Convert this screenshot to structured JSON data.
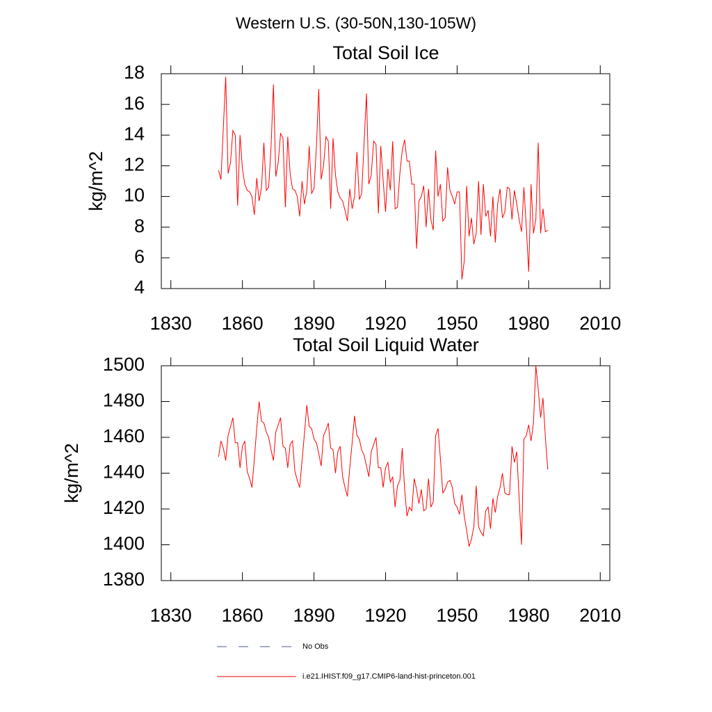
{
  "title": "Western U.S. (30-50N,130-105W)",
  "legend": [
    {
      "name": "No Obs",
      "color": "#4a5a8a",
      "dashed": true
    },
    {
      "name": "i.e21.IHIST.f09_g17.CMIP6-land-hist-princeton.001",
      "color": "#ff0000",
      "dashed": false
    }
  ],
  "chart_data": [
    {
      "type": "line",
      "title": "Total Soil Ice",
      "y_label": "kg/m^2",
      "xlim": [
        1826,
        2014
      ],
      "xticks": [
        1830,
        1860,
        1890,
        1920,
        1950,
        1980,
        2010
      ],
      "ylim": [
        4,
        18
      ],
      "yticks": [
        4,
        6,
        8,
        10,
        12,
        14,
        16,
        18
      ],
      "x": [
        1850,
        1851,
        1852,
        1853,
        1854,
        1855,
        1856,
        1857,
        1858,
        1859,
        1860,
        1861,
        1862,
        1863,
        1864,
        1865,
        1866,
        1867,
        1868,
        1869,
        1870,
        1871,
        1872,
        1873,
        1874,
        1875,
        1876,
        1877,
        1878,
        1879,
        1880,
        1881,
        1882,
        1883,
        1884,
        1885,
        1886,
        1887,
        1888,
        1889,
        1890,
        1891,
        1892,
        1893,
        1894,
        1895,
        1896,
        1897,
        1898,
        1899,
        1900,
        1901,
        1902,
        1903,
        1904,
        1905,
        1906,
        1907,
        1908,
        1909,
        1910,
        1911,
        1912,
        1913,
        1914,
        1915,
        1916,
        1917,
        1918,
        1919,
        1920,
        1921,
        1922,
        1923,
        1924,
        1925,
        1926,
        1927,
        1928,
        1929,
        1930,
        1931,
        1932,
        1933,
        1934,
        1935,
        1936,
        1937,
        1938,
        1939,
        1940,
        1941,
        1942,
        1943,
        1944,
        1945,
        1946,
        1947,
        1948,
        1949,
        1950,
        1951,
        1952,
        1953,
        1954,
        1955,
        1956,
        1957,
        1958,
        1959,
        1960,
        1961,
        1962,
        1963,
        1964,
        1965,
        1966,
        1967,
        1968,
        1969,
        1970,
        1971,
        1972,
        1973,
        1974,
        1975,
        1976,
        1977,
        1978,
        1979,
        1980,
        1981,
        1982,
        1983,
        1984,
        1985,
        1986,
        1987,
        1988
      ],
      "series": [
        {
          "name": "i.e21.IHIST.f09_g17.CMIP6-land-hist-princeton.001",
          "color": "#ff0000",
          "values": [
            11.7,
            11.1,
            14.5,
            17.8,
            11.5,
            12.2,
            14.3,
            14.0,
            9.4,
            14.0,
            11.8,
            10.8,
            10.4,
            10.3,
            10.0,
            8.8,
            11.2,
            9.7,
            10.6,
            13.5,
            10.4,
            10.6,
            13.2,
            17.3,
            11.3,
            12.2,
            14.1,
            13.8,
            9.3,
            13.9,
            11.5,
            10.5,
            10.4,
            10.0,
            8.7,
            11.0,
            9.5,
            10.4,
            13.3,
            10.2,
            10.5,
            13.2,
            17.0,
            11.1,
            12.0,
            13.9,
            13.6,
            9.2,
            13.8,
            11.4,
            10.3,
            9.9,
            9.7,
            9.1,
            8.4,
            10.5,
            9.2,
            10.0,
            12.9,
            9.8,
            10.2,
            13.5,
            16.7,
            10.8,
            11.4,
            13.6,
            13.4,
            8.9,
            13.3,
            11.0,
            9.0,
            11.8,
            10.4,
            13.6,
            9.2,
            9.3,
            11.5,
            13.0,
            13.7,
            12.3,
            12.3,
            10.8,
            10.8,
            6.6,
            9.7,
            10.0,
            10.7,
            8.0,
            10.5,
            8.5,
            7.8,
            13.0,
            10.0,
            10.8,
            8.4,
            8.6,
            11.9,
            10.4,
            10.0,
            9.5,
            10.3,
            10.3,
            4.6,
            5.8,
            10.7,
            7.4,
            8.6,
            6.9,
            7.6,
            11.0,
            7.5,
            10.8,
            8.7,
            9.1,
            7.4,
            10.0,
            7.0,
            9.5,
            10.5,
            8.6,
            9.0,
            10.6,
            10.5,
            8.5,
            10.4,
            9.5,
            8.5,
            7.7,
            10.6,
            8.0,
            5.1,
            10.8,
            7.6,
            8.5,
            13.5,
            7.6,
            9.2,
            7.7,
            7.8
          ]
        }
      ]
    },
    {
      "type": "line",
      "title": "Total Soil Liquid Water",
      "y_label": "kg/m^2",
      "xlim": [
        1826,
        2014
      ],
      "xticks": [
        1830,
        1860,
        1890,
        1920,
        1950,
        1980,
        2010
      ],
      "ylim": [
        1380,
        1500
      ],
      "yticks": [
        1380,
        1400,
        1420,
        1440,
        1460,
        1480,
        1500
      ],
      "x": [
        1850,
        1851,
        1852,
        1853,
        1854,
        1855,
        1856,
        1857,
        1858,
        1859,
        1860,
        1861,
        1862,
        1863,
        1864,
        1865,
        1866,
        1867,
        1868,
        1869,
        1870,
        1871,
        1872,
        1873,
        1874,
        1875,
        1876,
        1877,
        1878,
        1879,
        1880,
        1881,
        1882,
        1883,
        1884,
        1885,
        1886,
        1887,
        1888,
        1889,
        1890,
        1891,
        1892,
        1893,
        1894,
        1895,
        1896,
        1897,
        1898,
        1899,
        1900,
        1901,
        1902,
        1903,
        1904,
        1905,
        1906,
        1907,
        1908,
        1909,
        1910,
        1911,
        1912,
        1913,
        1914,
        1915,
        1916,
        1917,
        1918,
        1919,
        1920,
        1921,
        1922,
        1923,
        1924,
        1925,
        1926,
        1927,
        1928,
        1929,
        1930,
        1931,
        1932,
        1933,
        1934,
        1935,
        1936,
        1937,
        1938,
        1939,
        1940,
        1941,
        1942,
        1943,
        1944,
        1945,
        1946,
        1947,
        1948,
        1949,
        1950,
        1951,
        1952,
        1953,
        1954,
        1955,
        1956,
        1957,
        1958,
        1959,
        1960,
        1961,
        1962,
        1963,
        1964,
        1965,
        1966,
        1967,
        1968,
        1969,
        1970,
        1971,
        1972,
        1973,
        1974,
        1975,
        1976,
        1977,
        1978,
        1979,
        1980,
        1981,
        1982,
        1983,
        1984,
        1985,
        1986,
        1987,
        1988
      ],
      "series": [
        {
          "name": "i.e21.IHIST.f09_g17.CMIP6-land-hist-princeton.001",
          "color": "#ff0000",
          "values": [
            1449,
            1458,
            1454,
            1447,
            1461,
            1466,
            1471,
            1457,
            1457,
            1443,
            1455,
            1458,
            1441,
            1437,
            1432,
            1448,
            1465,
            1480,
            1469,
            1468,
            1463,
            1460,
            1453,
            1447,
            1463,
            1467,
            1471,
            1455,
            1454,
            1443,
            1456,
            1458,
            1441,
            1436,
            1432,
            1447,
            1462,
            1478,
            1466,
            1465,
            1459,
            1457,
            1451,
            1444,
            1461,
            1464,
            1468,
            1454,
            1453,
            1440,
            1452,
            1455,
            1438,
            1432,
            1427,
            1443,
            1457,
            1472,
            1461,
            1459,
            1453,
            1450,
            1444,
            1438,
            1452,
            1456,
            1460,
            1443,
            1443,
            1432,
            1443,
            1446,
            1435,
            1438,
            1421,
            1433,
            1436,
            1454,
            1431,
            1416,
            1421,
            1419,
            1437,
            1431,
            1423,
            1431,
            1419,
            1420,
            1437,
            1421,
            1424,
            1461,
            1465,
            1448,
            1429,
            1431,
            1435,
            1436,
            1432,
            1423,
            1421,
            1417,
            1428,
            1416,
            1408,
            1399,
            1403,
            1410,
            1433,
            1410,
            1407,
            1405,
            1419,
            1421,
            1409,
            1426,
            1418,
            1427,
            1432,
            1440,
            1429,
            1428,
            1428,
            1455,
            1446,
            1452,
            1426,
            1400,
            1459,
            1461,
            1467,
            1458,
            1468,
            1500,
            1487,
            1471,
            1482,
            1460,
            1442
          ]
        }
      ]
    }
  ]
}
